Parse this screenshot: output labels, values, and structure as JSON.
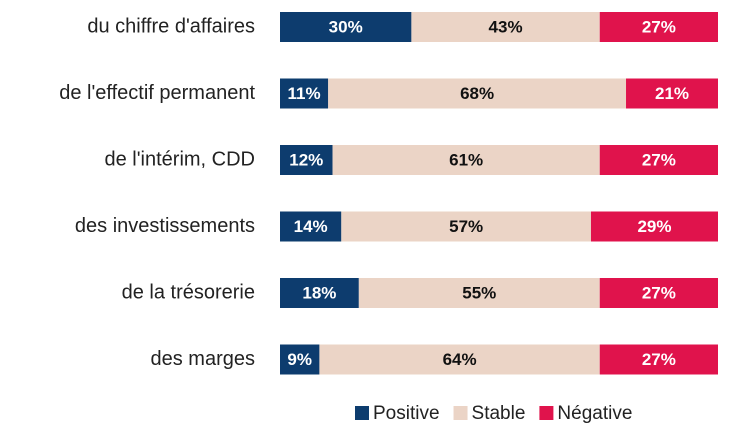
{
  "chart_data": {
    "type": "stacked-bar-horizontal",
    "categories": [
      "du chiffre d'affaires",
      "de l'effectif permanent",
      "de l'intérim, CDD",
      "des investissements",
      "de la trésorerie",
      "des marges"
    ],
    "series": [
      {
        "name": "Positive",
        "color": "#0d3c6e",
        "values": [
          30,
          11,
          12,
          14,
          18,
          9
        ],
        "value_labels": [
          "30%",
          "11%",
          "12%",
          "14%",
          "18%",
          "9%"
        ]
      },
      {
        "name": "Stable",
        "color": "#ebd4c6",
        "values": [
          43,
          68,
          61,
          57,
          55,
          64
        ],
        "value_labels": [
          "43%",
          "68%",
          "61%",
          "57%",
          "55%",
          "64%"
        ]
      },
      {
        "name": "Négative",
        "color": "#e0134c",
        "values": [
          27,
          21,
          27,
          29,
          27,
          27
        ],
        "value_labels": [
          "27%",
          "21%",
          "27%",
          "29%",
          "27%",
          "27%"
        ]
      }
    ],
    "xlim": [
      0,
      100
    ]
  }
}
